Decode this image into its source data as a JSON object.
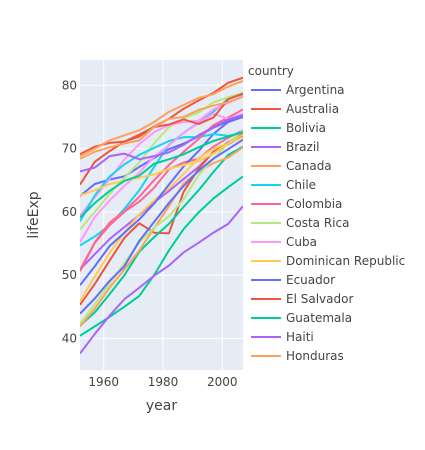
{
  "chart_data": {
    "type": "line",
    "xlabel": "year",
    "ylabel": "lifeExp",
    "xlim": [
      1952,
      2007
    ],
    "ylim": [
      35,
      84
    ],
    "x_ticks": [
      1960,
      1980,
      2000
    ],
    "y_ticks": [
      40,
      50,
      60,
      70,
      80
    ],
    "grid": true,
    "legend_title": "country",
    "legend_position": "right",
    "x": [
      1952,
      1957,
      1962,
      1967,
      1972,
      1977,
      1982,
      1987,
      1992,
      1997,
      2002,
      2007
    ],
    "series": [
      {
        "name": "Argentina",
        "color": "#636efa",
        "values": [
          62.5,
          64.4,
          65.1,
          65.6,
          67.1,
          68.5,
          69.9,
          70.8,
          71.9,
          73.3,
          74.3,
          75.3
        ]
      },
      {
        "name": "Australia",
        "color": "#EF553B",
        "values": [
          69.1,
          70.3,
          70.9,
          71.1,
          71.9,
          73.5,
          74.7,
          76.3,
          77.6,
          78.8,
          80.4,
          81.2
        ]
      },
      {
        "name": "Bolivia",
        "color": "#00cc96",
        "values": [
          40.4,
          41.9,
          43.4,
          45.0,
          46.7,
          50.0,
          53.9,
          57.3,
          59.9,
          62.1,
          63.9,
          65.6
        ]
      },
      {
        "name": "Brazil",
        "color": "#ab63fa",
        "values": [
          50.9,
          53.3,
          55.7,
          57.6,
          59.5,
          61.5,
          63.3,
          65.2,
          67.1,
          69.4,
          71.0,
          72.4
        ]
      },
      {
        "name": "Canada",
        "color": "#FFA15A",
        "values": [
          68.8,
          70.0,
          71.3,
          72.1,
          72.9,
          74.2,
          75.8,
          76.9,
          78.0,
          78.6,
          79.8,
          80.7
        ]
      },
      {
        "name": "Chile",
        "color": "#19d3f3",
        "values": [
          54.7,
          56.1,
          57.9,
          60.5,
          63.4,
          67.1,
          70.6,
          72.5,
          74.1,
          75.8,
          77.9,
          78.6
        ]
      },
      {
        "name": "Colombia",
        "color": "#FF6692",
        "values": [
          50.6,
          55.1,
          57.9,
          60.0,
          61.6,
          63.8,
          66.7,
          67.8,
          68.4,
          70.3,
          71.7,
          72.9
        ]
      },
      {
        "name": "Costa Rica",
        "color": "#B6E880",
        "values": [
          57.2,
          60.0,
          62.8,
          65.4,
          67.8,
          70.8,
          73.4,
          74.8,
          75.7,
          77.3,
          78.1,
          78.8
        ]
      },
      {
        "name": "Cuba",
        "color": "#FF97FF",
        "values": [
          59.4,
          62.3,
          65.2,
          68.3,
          70.7,
          72.6,
          73.7,
          74.2,
          74.4,
          76.2,
          77.2,
          78.3
        ]
      },
      {
        "name": "Dominican Republic",
        "color": "#FECB52",
        "values": [
          45.9,
          49.8,
          53.5,
          56.8,
          59.6,
          61.8,
          63.7,
          66.0,
          68.5,
          69.96,
          70.8,
          72.2
        ]
      },
      {
        "name": "Ecuador",
        "color": "#636efa",
        "values": [
          48.4,
          51.4,
          54.6,
          56.7,
          58.8,
          61.3,
          64.3,
          67.2,
          69.6,
          72.3,
          74.2,
          75.0
        ]
      },
      {
        "name": "El Salvador",
        "color": "#EF553B",
        "values": [
          45.3,
          48.6,
          52.3,
          55.9,
          58.2,
          56.7,
          56.6,
          63.2,
          66.8,
          69.5,
          70.7,
          71.9
        ]
      },
      {
        "name": "Guatemala",
        "color": "#00cc96",
        "values": [
          42.0,
          44.1,
          47.0,
          50.0,
          53.7,
          56.0,
          58.1,
          60.8,
          63.4,
          66.3,
          68.98,
          70.3
        ]
      },
      {
        "name": "Haiti",
        "color": "#ab63fa",
        "values": [
          37.6,
          40.7,
          43.6,
          46.2,
          48.0,
          49.9,
          51.5,
          53.6,
          55.1,
          56.7,
          58.1,
          60.9
        ]
      },
      {
        "name": "Honduras",
        "color": "#FFA15A",
        "values": [
          41.9,
          44.7,
          48.0,
          50.9,
          53.9,
          57.4,
          60.9,
          64.5,
          66.4,
          67.7,
          68.6,
          70.2
        ]
      },
      {
        "name": "",
        "color": "#19d3f3",
        "values": [
          58.5,
          62.6,
          65.6,
          67.5,
          69.0,
          70.1,
          71.2,
          71.8,
          71.8,
          72.3,
          72.0,
          72.6
        ]
      },
      {
        "name": "",
        "color": "#FF6692",
        "values": [
          50.8,
          55.2,
          58.3,
          60.1,
          62.4,
          65.0,
          67.4,
          69.5,
          71.5,
          73.7,
          74.9,
          76.2
        ]
      },
      {
        "name": "",
        "color": "#B6E880",
        "values": [
          42.3,
          45.4,
          48.6,
          51.9,
          55.2,
          57.5,
          59.3,
          62.0,
          65.8,
          68.4,
          70.8,
          72.9
        ]
      },
      {
        "name": "",
        "color": "#FF97FF",
        "values": [
          55.2,
          59.2,
          61.8,
          64.1,
          66.2,
          68.7,
          70.5,
          72.5,
          74.0,
          75.5,
          74.7,
          75.5
        ]
      },
      {
        "name": "",
        "color": "#FECB52",
        "values": [
          62.6,
          63.4,
          64.4,
          64.9,
          65.4,
          65.9,
          66.8,
          67.4,
          68.0,
          69.2,
          70.8,
          71.8
        ]
      },
      {
        "name": "",
        "color": "#636efa",
        "values": [
          43.9,
          46.3,
          49.1,
          51.4,
          55.4,
          58.4,
          61.4,
          64.1,
          66.5,
          68.4,
          69.9,
          71.4
        ]
      },
      {
        "name": "",
        "color": "#EF553B",
        "values": [
          64.3,
          67.9,
          69.6,
          71.1,
          72.2,
          73.4,
          73.8,
          74.6,
          73.9,
          74.9,
          77.8,
          78.7
        ]
      },
      {
        "name": "",
        "color": "#00cc96",
        "values": [
          59.1,
          61.4,
          63.3,
          64.9,
          65.7,
          67.6,
          68.3,
          69.1,
          70.2,
          71.2,
          71.9,
          72.6
        ]
      },
      {
        "name": "",
        "color": "#ab63fa",
        "values": [
          66.4,
          67.0,
          68.8,
          69.2,
          68.3,
          68.8,
          69.4,
          70.6,
          72.1,
          73.4,
          74.6,
          75.3
        ]
      },
      {
        "name": "",
        "color": "#FFA15A",
        "values": [
          68.4,
          69.5,
          70.2,
          70.8,
          71.3,
          73.4,
          74.7,
          75.0,
          76.1,
          76.8,
          77.3,
          78.2
        ]
      }
    ]
  }
}
